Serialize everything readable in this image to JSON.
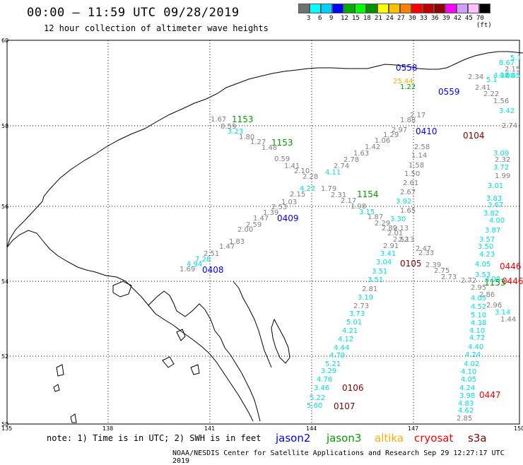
{
  "header": {
    "title": "00:00 — 11:59 UTC 09/28/2019",
    "subtitle": "12 hour collection of altimeter wave heights"
  },
  "colorbar": {
    "colors": [
      "#707070",
      "#00ffff",
      "#00d0ff",
      "#0000ff",
      "#00b000",
      "#00ff00",
      "#009000",
      "#ffff00",
      "#ffc000",
      "#ff8000",
      "#ff0000",
      "#c00000",
      "#900000",
      "#ff00ff",
      "#d0a0ff",
      "#ffc0ff",
      "#000000"
    ],
    "labels": [
      "3",
      "6",
      "9",
      "12",
      "15",
      "18",
      "21",
      "24",
      "27",
      "30",
      "33",
      "36",
      "39",
      "42",
      "45",
      "70 (ft)"
    ]
  },
  "axes": {
    "lat_labels": [
      "60",
      "58",
      "56",
      "54",
      "52",
      "50"
    ],
    "lon_labels": [
      "135",
      "138",
      "141",
      "144",
      "147",
      "150"
    ]
  },
  "colors": {
    "jason2": "#0000ff",
    "jason3": "#00a000",
    "altika": "#ffaa00",
    "cryosat": "#ff0000",
    "s3a": "#800000",
    "cyan": "#00e0e0",
    "gray": "#808080"
  },
  "pass_labels": [
    {
      "text": "1153",
      "c": "jason3"
    },
    {
      "text": "1153",
      "c": "jason3"
    },
    {
      "text": "1154",
      "c": "jason3"
    },
    {
      "text": "0409",
      "c": "jason2"
    },
    {
      "text": "0408",
      "c": "jason2"
    },
    {
      "text": "0410",
      "c": "jason2"
    },
    {
      "text": "0104",
      "c": "s3a"
    },
    {
      "text": "0105",
      "c": "s3a"
    },
    {
      "text": "0106",
      "c": "s3a"
    },
    {
      "text": "0107",
      "c": "s3a"
    },
    {
      "text": "0446",
      "c": "cryosat"
    },
    {
      "text": "0446",
      "c": "cryosat"
    },
    {
      "text": "0447",
      "c": "cryosat"
    },
    {
      "text": "1153",
      "c": "jason3"
    },
    {
      "text": "0559",
      "c": "jason2"
    },
    {
      "text": "0558",
      "c": "jason2"
    }
  ],
  "wave_heights": [
    {
      "v": "1.67",
      "c": "gray"
    },
    {
      "v": "0.59",
      "c": "gray"
    },
    {
      "v": "3.23",
      "c": "cyan"
    },
    {
      "v": "1.80",
      "c": "gray"
    },
    {
      "v": "1.27",
      "c": "gray"
    },
    {
      "v": "1.48",
      "c": "gray"
    },
    {
      "v": "0.59",
      "c": "gray"
    },
    {
      "v": "1.41",
      "c": "gray"
    },
    {
      "v": "2.10",
      "c": "gray"
    },
    {
      "v": "2.28",
      "c": "gray"
    },
    {
      "v": "4.11",
      "c": "cyan"
    },
    {
      "v": "2.74",
      "c": "gray"
    },
    {
      "v": "2.78",
      "c": "gray"
    },
    {
      "v": "1.63",
      "c": "gray"
    },
    {
      "v": "1.42",
      "c": "gray"
    },
    {
      "v": "1.06",
      "c": "gray"
    },
    {
      "v": "1.29",
      "c": "gray"
    },
    {
      "v": "2.97",
      "c": "gray"
    },
    {
      "v": "1.88",
      "c": "gray"
    },
    {
      "v": "4.22",
      "c": "cyan"
    },
    {
      "v": "2.15",
      "c": "gray"
    },
    {
      "v": "1.03",
      "c": "gray"
    },
    {
      "v": "2.53",
      "c": "gray"
    },
    {
      "v": "1.39",
      "c": "gray"
    },
    {
      "v": "1.47",
      "c": "gray"
    },
    {
      "v": "2.59",
      "c": "gray"
    },
    {
      "v": "2.00",
      "c": "gray"
    },
    {
      "v": "1.83",
      "c": "gray"
    },
    {
      "v": "1.47",
      "c": "gray"
    },
    {
      "v": "2.51",
      "c": "gray"
    },
    {
      "v": "7.28",
      "c": "cyan"
    },
    {
      "v": "4.94",
      "c": "cyan"
    },
    {
      "v": "1.69",
      "c": "gray"
    },
    {
      "v": "1.79",
      "c": "gray"
    },
    {
      "v": "2.31",
      "c": "gray"
    },
    {
      "v": "2.17",
      "c": "gray"
    },
    {
      "v": "1.98",
      "c": "gray"
    },
    {
      "v": "3.15",
      "c": "cyan"
    },
    {
      "v": "1.87",
      "c": "gray"
    },
    {
      "v": "2.29",
      "c": "gray"
    },
    {
      "v": "2.89",
      "c": "gray"
    },
    {
      "v": "2.01",
      "c": "gray"
    },
    {
      "v": "2.52",
      "c": "gray"
    },
    {
      "v": "2.91",
      "c": "gray"
    },
    {
      "v": "3.41",
      "c": "cyan"
    },
    {
      "v": "3.04",
      "c": "cyan"
    },
    {
      "v": "3.51",
      "c": "cyan"
    },
    {
      "v": "3.51",
      "c": "cyan"
    },
    {
      "v": "2.81",
      "c": "gray"
    },
    {
      "v": "3.19",
      "c": "cyan"
    },
    {
      "v": "2.73",
      "c": "gray"
    },
    {
      "v": "3.73",
      "c": "cyan"
    },
    {
      "v": "5.01",
      "c": "cyan"
    },
    {
      "v": "4.21",
      "c": "cyan"
    },
    {
      "v": "4.12",
      "c": "cyan"
    },
    {
      "v": "4.44",
      "c": "cyan"
    },
    {
      "v": "4.79",
      "c": "cyan"
    },
    {
      "v": "5.21",
      "c": "cyan"
    },
    {
      "v": "3.29",
      "c": "cyan"
    },
    {
      "v": "4.76",
      "c": "cyan"
    },
    {
      "v": "3.46",
      "c": "cyan"
    },
    {
      "v": "5.22",
      "c": "cyan"
    },
    {
      "v": "5.60",
      "c": "cyan"
    },
    {
      "v": "2.17",
      "c": "gray"
    },
    {
      "v": "2.58",
      "c": "gray"
    },
    {
      "v": "1.14",
      "c": "gray"
    },
    {
      "v": "1.58",
      "c": "gray"
    },
    {
      "v": "1.50",
      "c": "gray"
    },
    {
      "v": "2.61",
      "c": "gray"
    },
    {
      "v": "2.67",
      "c": "gray"
    },
    {
      "v": "3.92",
      "c": "cyan"
    },
    {
      "v": "1.65",
      "c": "gray"
    },
    {
      "v": "3.30",
      "c": "cyan"
    },
    {
      "v": "2.13",
      "c": "gray"
    },
    {
      "v": "2.13",
      "c": "gray"
    },
    {
      "v": "2.47",
      "c": "gray"
    },
    {
      "v": "2.33",
      "c": "gray"
    },
    {
      "v": "2.39",
      "c": "gray"
    },
    {
      "v": "2.75",
      "c": "gray"
    },
    {
      "v": "2.73",
      "c": "gray"
    },
    {
      "v": "2.72",
      "c": "gray"
    },
    {
      "v": "2.95",
      "c": "gray"
    },
    {
      "v": "2.86",
      "c": "gray"
    },
    {
      "v": "2.96",
      "c": "gray"
    },
    {
      "v": "3.14",
      "c": "cyan"
    },
    {
      "v": "1.44",
      "c": "gray"
    },
    {
      "v": "2.34",
      "c": "gray"
    },
    {
      "v": "2.41",
      "c": "gray"
    },
    {
      "v": "2.22",
      "c": "gray"
    },
    {
      "v": "1.56",
      "c": "gray"
    },
    {
      "v": "3.42",
      "c": "cyan"
    },
    {
      "v": "2.74",
      "c": "gray"
    },
    {
      "v": "3.09",
      "c": "cyan"
    },
    {
      "v": "2.32",
      "c": "gray"
    },
    {
      "v": "3.72",
      "c": "cyan"
    },
    {
      "v": "1.99",
      "c": "gray"
    },
    {
      "v": "3.01",
      "c": "cyan"
    },
    {
      "v": "3.83",
      "c": "cyan"
    },
    {
      "v": "3.67",
      "c": "cyan"
    },
    {
      "v": "3.82",
      "c": "cyan"
    },
    {
      "v": "4.00",
      "c": "cyan"
    },
    {
      "v": "3.87",
      "c": "cyan"
    },
    {
      "v": "3.57",
      "c": "cyan"
    },
    {
      "v": "3.50",
      "c": "cyan"
    },
    {
      "v": "4.23",
      "c": "cyan"
    },
    {
      "v": "4.05",
      "c": "cyan"
    },
    {
      "v": "3.53",
      "c": "cyan"
    },
    {
      "v": "4.08",
      "c": "cyan"
    },
    {
      "v": "4.05",
      "c": "cyan"
    },
    {
      "v": "4.52",
      "c": "cyan"
    },
    {
      "v": "5.10",
      "c": "cyan"
    },
    {
      "v": "4.38",
      "c": "cyan"
    },
    {
      "v": "4.10",
      "c": "cyan"
    },
    {
      "v": "4.72",
      "c": "cyan"
    },
    {
      "v": "4.40",
      "c": "cyan"
    },
    {
      "v": "4.24",
      "c": "cyan"
    },
    {
      "v": "4.02",
      "c": "cyan"
    },
    {
      "v": "4.10",
      "c": "cyan"
    },
    {
      "v": "4.05",
      "c": "cyan"
    },
    {
      "v": "4.24",
      "c": "cyan"
    },
    {
      "v": "3.98",
      "c": "cyan"
    },
    {
      "v": "4.83",
      "c": "cyan"
    },
    {
      "v": "4.62",
      "c": "cyan"
    },
    {
      "v": "2.85",
      "c": "gray"
    },
    {
      "v": "2.15",
      "c": "gray"
    },
    {
      "v": "7.65",
      "c": "cyan"
    },
    {
      "v": "4.38",
      "c": "cyan"
    },
    {
      "v": "4.00",
      "c": "cyan"
    },
    {
      "v": "5.1",
      "c": "cyan"
    },
    {
      "v": "5.1",
      "c": "cyan"
    },
    {
      "v": "8.67",
      "c": "cyan"
    },
    {
      "v": "25.44",
      "c": "altika"
    },
    {
      "v": "1.22",
      "c": "jason3"
    }
  ],
  "footer": {
    "note": "note: 1) Time is in UTC; 2) SWH is in feet",
    "satellites": [
      {
        "name": "jason2",
        "c": "jason2"
      },
      {
        "name": "jason3",
        "c": "jason3"
      },
      {
        "name": "altika",
        "c": "altika"
      },
      {
        "name": "cryosat",
        "c": "cryosat"
      },
      {
        "name": "s3a",
        "c": "s3a"
      }
    ],
    "credit": "NOAA/NESDIS Center for Satellite Applications and Research   Sep 29 12:27:17 UTC 2019"
  }
}
